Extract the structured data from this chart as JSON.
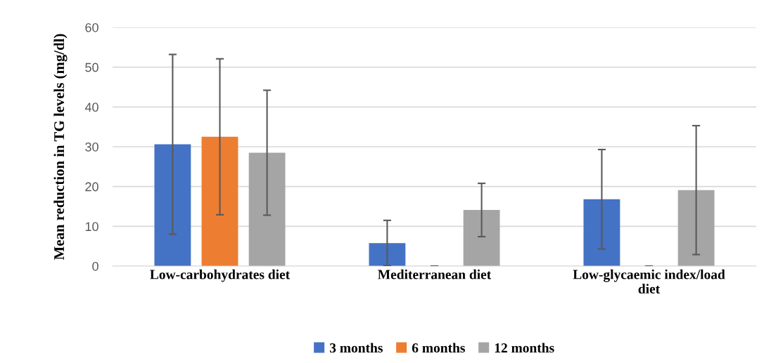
{
  "chart_data": {
    "type": "bar",
    "ylabel": "Mean reduction in TG levels (mg/dl)",
    "categories": [
      "Low-carbohydrates diet",
      "Mediterranean diet",
      "Low-glycaemic index/load\ndiet"
    ],
    "series": [
      {
        "name": "3 months",
        "color": "#4472c4",
        "values": [
          30.6,
          5.8,
          16.8
        ],
        "errors": [
          22.6,
          5.7,
          12.5
        ]
      },
      {
        "name": "6 months",
        "color": "#ed7d31",
        "values": [
          32.5,
          0,
          0
        ],
        "errors": [
          19.6,
          0,
          0
        ]
      },
      {
        "name": "12 months",
        "color": "#a5a5a5",
        "values": [
          28.5,
          14.1,
          19.1
        ],
        "errors": [
          15.7,
          6.7,
          16.2
        ]
      }
    ],
    "ylim": [
      0,
      60
    ],
    "yticks": [
      0,
      10,
      20,
      30,
      40,
      50,
      60
    ],
    "grid": "y",
    "legend": "bottom"
  }
}
